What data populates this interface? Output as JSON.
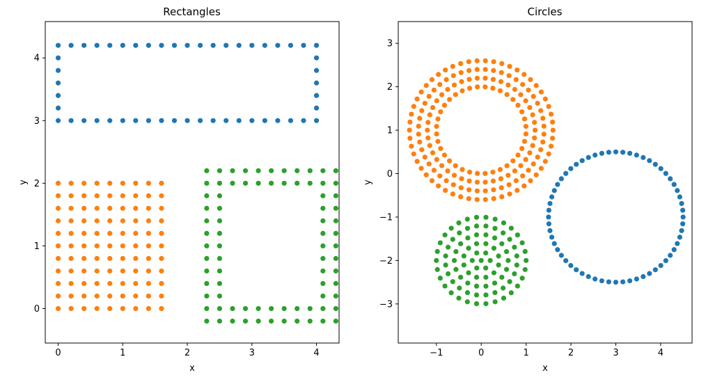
{
  "chart_data": [
    {
      "type": "scatter",
      "title": "Rectangles",
      "xlabel": "x",
      "ylabel": "y",
      "xlim": [
        -0.2,
        4.35
      ],
      "ylim": [
        -0.55,
        4.58
      ],
      "xticks": [
        0,
        1,
        2,
        3,
        4
      ],
      "yticks": [
        0,
        1,
        2,
        3,
        4
      ],
      "grid": false,
      "colors": [
        "#1f77b4",
        "#ff7f0e",
        "#2ca02c"
      ],
      "series": [
        {
          "shape": "rectangle-outline",
          "x_range": [
            0,
            4
          ],
          "y_range": [
            3,
            4.2
          ],
          "spacing": 0.2,
          "rings": 1
        },
        {
          "shape": "rectangle-filled",
          "x_range": [
            0,
            1.6
          ],
          "y_range": [
            0,
            2
          ],
          "spacing": 0.2
        },
        {
          "shape": "rectangle-outline",
          "x_range": [
            2.3,
            4.3
          ],
          "y_range": [
            -0.2,
            2.2
          ],
          "spacing": 0.2,
          "rings": 2
        }
      ]
    },
    {
      "type": "scatter",
      "title": "Circles",
      "xlabel": "x",
      "ylabel": "y",
      "xlim": [
        -1.85,
        4.7
      ],
      "ylim": [
        -3.9,
        3.5
      ],
      "xticks": [
        -1,
        0,
        1,
        2,
        3,
        4
      ],
      "xtick_labels": [
        "−1",
        "0",
        "1",
        "2",
        "3",
        "4"
      ],
      "yticks": [
        -3,
        -2,
        -1,
        0,
        1,
        2,
        3
      ],
      "ytick_labels": [
        "−3",
        "−2",
        "−1",
        "0",
        "1",
        "2",
        "3"
      ],
      "grid": false,
      "colors": [
        "#1f77b4",
        "#ff7f0e",
        "#2ca02c"
      ],
      "series": [
        {
          "shape": "ring",
          "center": [
            3,
            -1
          ],
          "radii": [
            1.5
          ],
          "points_per_ring": [
            60
          ]
        },
        {
          "shape": "ring",
          "center": [
            0,
            1
          ],
          "radii": [
            1.6,
            1.4,
            1.2,
            1.0
          ],
          "points_per_ring": [
            54,
            48,
            42,
            36
          ]
        },
        {
          "shape": "disk",
          "center": [
            0,
            -2
          ],
          "radii": [
            1.0,
            0.8,
            0.6,
            0.4,
            0.2,
            0.0
          ],
          "points_per_ring": [
            30,
            24,
            18,
            12,
            6,
            1
          ]
        }
      ]
    }
  ]
}
